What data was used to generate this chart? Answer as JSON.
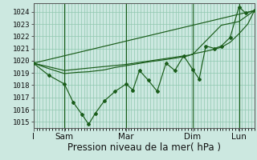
{
  "background_color": "#cce8e0",
  "grid_color": "#90c8b0",
  "line_color": "#1a5c1a",
  "xlabel": "Pression niveau de la mer( hPa )",
  "ylim": [
    1014.5,
    1024.7
  ],
  "yticks": [
    1015,
    1016,
    1017,
    1018,
    1019,
    1020,
    1021,
    1022,
    1023,
    1024
  ],
  "xtick_labels": [
    "I",
    "Sam",
    "Mar",
    "Dim",
    "Lun"
  ],
  "xtick_positions": [
    0.0,
    0.14,
    0.42,
    0.72,
    0.93
  ],
  "vline_positions": [
    0.0,
    0.14,
    0.42,
    0.72,
    0.93
  ],
  "trend_line_x": [
    0.0,
    1.0
  ],
  "trend_line_y": [
    1019.8,
    1024.1
  ],
  "series1_x": [
    0.0,
    0.07,
    0.14,
    0.2,
    0.25,
    0.32,
    0.37,
    0.42,
    0.47,
    0.52,
    0.58,
    0.64,
    0.7,
    0.72,
    0.76,
    0.8,
    0.85,
    0.89,
    0.93,
    0.97,
    1.0
  ],
  "series1_y": [
    1019.8,
    1019.35,
    1018.95,
    1019.05,
    1019.1,
    1019.25,
    1019.45,
    1019.6,
    1019.75,
    1019.9,
    1020.05,
    1020.2,
    1020.4,
    1020.55,
    1020.7,
    1020.85,
    1021.1,
    1021.5,
    1022.2,
    1023.0,
    1024.1
  ],
  "series2_x": [
    0.0,
    0.07,
    0.14,
    0.18,
    0.22,
    0.25,
    0.28,
    0.32,
    0.37,
    0.42,
    0.45,
    0.48,
    0.52,
    0.56,
    0.6,
    0.64,
    0.68,
    0.72,
    0.75,
    0.78,
    0.82,
    0.85,
    0.89,
    0.93,
    0.96,
    1.0
  ],
  "series2_y": [
    1019.8,
    1018.8,
    1018.1,
    1016.6,
    1015.6,
    1014.8,
    1015.7,
    1016.7,
    1017.5,
    1018.1,
    1017.6,
    1019.2,
    1018.4,
    1017.5,
    1019.8,
    1019.2,
    1020.4,
    1019.3,
    1018.5,
    1021.2,
    1021.0,
    1021.2,
    1021.9,
    1024.4,
    1023.9,
    1024.1
  ],
  "series3_x": [
    0.0,
    0.14,
    0.42,
    0.72,
    0.85,
    0.93,
    1.0
  ],
  "series3_y": [
    1019.8,
    1019.2,
    1019.7,
    1020.5,
    1022.9,
    1023.2,
    1024.1
  ],
  "xlabel_fontsize": 8.5,
  "ytick_fontsize": 6.5,
  "xtick_fontsize": 7.5
}
